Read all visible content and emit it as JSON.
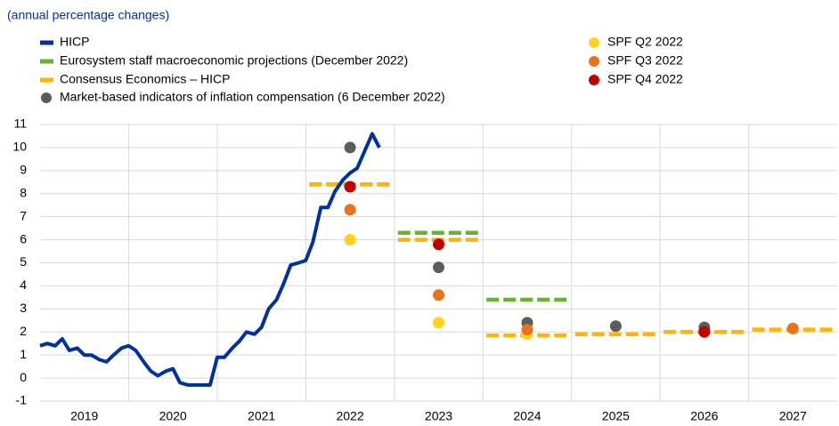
{
  "chart_data": {
    "type": "line",
    "subtitle": "(annual percentage changes)",
    "categories": [
      "2019",
      "2020",
      "2021",
      "2022",
      "2023",
      "2024",
      "2025",
      "2026",
      "2027"
    ],
    "xlim": [
      2019,
      2028
    ],
    "ylim": [
      -1,
      11
    ],
    "yticks": [
      -1,
      0,
      1,
      2,
      3,
      4,
      5,
      6,
      7,
      8,
      9,
      10,
      11
    ],
    "grid": true,
    "series": [
      {
        "name": "HICP",
        "kind": "line",
        "color": "#003299",
        "x": [
          2019.0,
          2019.08,
          2019.17,
          2019.25,
          2019.33,
          2019.42,
          2019.5,
          2019.58,
          2019.67,
          2019.75,
          2019.83,
          2019.92,
          2020.0,
          2020.08,
          2020.17,
          2020.25,
          2020.33,
          2020.42,
          2020.5,
          2020.58,
          2020.67,
          2020.75,
          2020.83,
          2020.92,
          2021.0,
          2021.08,
          2021.17,
          2021.25,
          2021.33,
          2021.42,
          2021.5,
          2021.58,
          2021.67,
          2021.75,
          2021.83,
          2021.92,
          2022.0,
          2022.08,
          2022.17,
          2022.25,
          2022.33,
          2022.42,
          2022.5,
          2022.58,
          2022.67,
          2022.75,
          2022.83
        ],
        "values": [
          1.4,
          1.5,
          1.4,
          1.7,
          1.2,
          1.3,
          1.0,
          1.0,
          0.8,
          0.7,
          1.0,
          1.3,
          1.4,
          1.2,
          0.7,
          0.3,
          0.1,
          0.3,
          0.4,
          -0.2,
          -0.3,
          -0.3,
          -0.3,
          -0.3,
          0.9,
          0.9,
          1.3,
          1.6,
          2.0,
          1.9,
          2.2,
          3.0,
          3.4,
          4.1,
          4.9,
          5.0,
          5.1,
          5.9,
          7.4,
          7.4,
          8.1,
          8.6,
          8.9,
          9.1,
          9.9,
          10.6,
          10.0
        ]
      },
      {
        "name": "Eurosystem staff macroeconomic projections (December 2022)",
        "kind": "dash",
        "color": "#65b32e",
        "x": [
          2022,
          2023,
          2024
        ],
        "values": [
          8.4,
          6.3,
          3.4
        ]
      },
      {
        "name": "Consensus Economics – HICP",
        "kind": "dash",
        "color": "#ffb400",
        "x": [
          2022,
          2023,
          2024,
          2025,
          2026,
          2027
        ],
        "values": [
          8.4,
          6.0,
          1.85,
          1.9,
          2.0,
          2.1
        ]
      },
      {
        "name": "Market-based indicators of inflation compensation (6 December 2022)",
        "kind": "dot",
        "color": "#5c5c5c",
        "x": [
          2022,
          2023,
          2024,
          2025,
          2026
        ],
        "values": [
          10.0,
          4.8,
          2.4,
          2.25,
          2.2
        ]
      },
      {
        "name": "SPF Q2 2022",
        "kind": "dot",
        "color": "#ffd21f",
        "x": [
          2022,
          2023,
          2024
        ],
        "values": [
          6.0,
          2.4,
          1.9
        ]
      },
      {
        "name": "SPF Q3 2022",
        "kind": "dot",
        "color": "#e8731c",
        "x": [
          2022,
          2023,
          2024,
          2027
        ],
        "values": [
          7.3,
          3.6,
          2.1,
          2.15
        ]
      },
      {
        "name": "SPF Q4 2022",
        "kind": "dot",
        "color": "#c00000",
        "x": [
          2022,
          2023,
          2026
        ],
        "values": [
          8.3,
          5.8,
          2.0
        ]
      }
    ]
  }
}
